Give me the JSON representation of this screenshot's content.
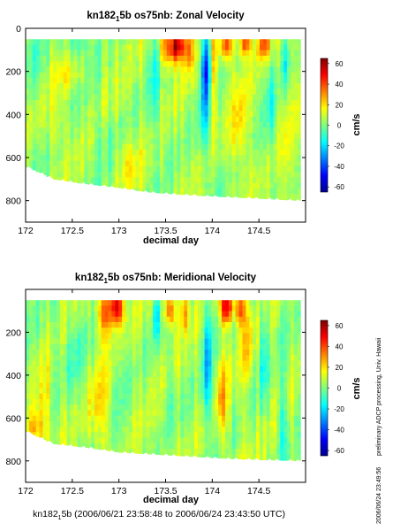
{
  "chart_data": [
    {
      "type": "heatmap",
      "title": "kn182",
      "title_sub": "1",
      "title_rest": "5b os75nb: Zonal Velocity",
      "xlabel": "decimal day",
      "x_ticks": [
        "172",
        "172.5",
        "173",
        "173.5",
        "174",
        "174.5"
      ],
      "x_tick_values": [
        172,
        172.5,
        173,
        173.5,
        174,
        174.5
      ],
      "xlim": [
        172,
        175
      ],
      "ylabel": "",
      "y_ticks": [
        "0",
        "200",
        "400",
        "600",
        "800"
      ],
      "y_tick_values": [
        0,
        200,
        400,
        600,
        800
      ],
      "ylim": [
        0,
        900
      ],
      "y_inverted": true,
      "colorbar": {
        "label": "cm/s",
        "ticks": [
          "60",
          "40",
          "20",
          "0",
          "-20",
          "-40",
          "-60"
        ],
        "tick_values": [
          60,
          40,
          20,
          0,
          -20,
          -40,
          -60
        ],
        "range": [
          -65,
          65
        ]
      },
      "data_top": 50,
      "bottom_depth_start": [
        [
          172.0,
          640
        ],
        [
          172.3,
          700
        ],
        [
          172.6,
          720
        ],
        [
          173.0,
          740
        ],
        [
          173.3,
          760
        ],
        [
          173.6,
          770
        ],
        [
          174.0,
          780
        ],
        [
          174.5,
          790
        ],
        [
          174.95,
          800
        ]
      ],
      "bottom_depth_end": [
        [
          172.0,
          690
        ],
        [
          172.5,
          720
        ],
        [
          173.2,
          760
        ],
        [
          173.9,
          780
        ],
        [
          174.5,
          790
        ],
        [
          174.95,
          800
        ]
      ],
      "features": [
        {
          "day": 173.63,
          "depth": 80,
          "value": 55,
          "width": 0.07,
          "height": 70
        },
        {
          "day": 173.52,
          "depth": 90,
          "value": 35,
          "width": 0.08,
          "height": 90
        },
        {
          "day": 173.75,
          "depth": 100,
          "value": 30,
          "width": 0.05,
          "height": 100
        },
        {
          "day": 173.93,
          "depth": 170,
          "value": -45,
          "width": 0.05,
          "height": 160
        },
        {
          "day": 173.91,
          "depth": 420,
          "value": -20,
          "width": 0.05,
          "height": 220
        },
        {
          "day": 174.35,
          "depth": 70,
          "value": 40,
          "width": 0.06,
          "height": 60
        },
        {
          "day": 174.15,
          "depth": 80,
          "value": 35,
          "width": 0.07,
          "height": 70
        },
        {
          "day": 174.55,
          "depth": 80,
          "value": 35,
          "width": 0.07,
          "height": 60
        },
        {
          "day": 174.78,
          "depth": 140,
          "value": -25,
          "width": 0.04,
          "height": 170
        },
        {
          "day": 174.62,
          "depth": 350,
          "value": -15,
          "width": 0.04,
          "height": 220
        },
        {
          "day": 173.38,
          "depth": 250,
          "value": -15,
          "width": 0.05,
          "height": 300
        },
        {
          "day": 174.02,
          "depth": 200,
          "value": 25,
          "width": 0.04,
          "height": 250
        },
        {
          "day": 172.55,
          "depth": 70,
          "value": -15,
          "width": 0.12,
          "height": 50
        },
        {
          "day": 172.45,
          "depth": 230,
          "value": 10,
          "width": 0.15,
          "height": 60
        },
        {
          "day": 172.35,
          "depth": 450,
          "value": 8,
          "width": 0.12,
          "height": 120
        },
        {
          "day": 172.85,
          "depth": 500,
          "value": -8,
          "width": 0.1,
          "height": 150
        },
        {
          "day": 173.1,
          "depth": 620,
          "value": 12,
          "width": 0.12,
          "height": 100
        },
        {
          "day": 174.3,
          "depth": 450,
          "value": 15,
          "width": 0.08,
          "height": 200
        },
        {
          "day": 172.1,
          "depth": 150,
          "value": -5,
          "width": 0.1,
          "height": 150
        }
      ]
    },
    {
      "type": "heatmap",
      "title": "kn182",
      "title_sub": "1",
      "title_rest": "5b os75nb: Meridional Velocity",
      "xlabel": "decimal day",
      "x_ticks": [
        "172",
        "172.5",
        "173",
        "173.5",
        "174",
        "174.5"
      ],
      "x_tick_values": [
        172,
        172.5,
        173,
        173.5,
        174,
        174.5
      ],
      "xlim": [
        172,
        175
      ],
      "ylabel": "",
      "y_ticks": [
        "200",
        "400",
        "600",
        "800"
      ],
      "y_tick_values": [
        200,
        400,
        600,
        800
      ],
      "ylim": [
        0,
        900
      ],
      "y_inverted": true,
      "colorbar": {
        "label": "cm/s",
        "ticks": [
          "60",
          "40",
          "20",
          "0",
          "-20",
          "-40",
          "-60"
        ],
        "tick_values": [
          60,
          40,
          20,
          0,
          -20,
          -40,
          -60
        ],
        "range": [
          -65,
          65
        ]
      },
      "data_top": 50,
      "bottom_depth_start": [
        [
          172.0,
          660
        ],
        [
          172.3,
          720
        ],
        [
          172.7,
          740
        ],
        [
          173.0,
          760
        ],
        [
          173.4,
          770
        ],
        [
          173.8,
          780
        ],
        [
          174.2,
          790
        ],
        [
          174.95,
          800
        ]
      ],
      "bottom_depth_end": [
        [
          172.0,
          700
        ],
        [
          172.5,
          740
        ],
        [
          173.2,
          770
        ],
        [
          174.0,
          790
        ],
        [
          174.95,
          800
        ]
      ],
      "features": [
        {
          "day": 172.98,
          "depth": 80,
          "value": 55,
          "width": 0.07,
          "height": 90
        },
        {
          "day": 172.85,
          "depth": 110,
          "value": 35,
          "width": 0.08,
          "height": 110
        },
        {
          "day": 174.15,
          "depth": 80,
          "value": 50,
          "width": 0.07,
          "height": 80
        },
        {
          "day": 174.3,
          "depth": 90,
          "value": 35,
          "width": 0.06,
          "height": 80
        },
        {
          "day": 173.55,
          "depth": 100,
          "value": 35,
          "width": 0.05,
          "height": 70
        },
        {
          "day": 173.7,
          "depth": 110,
          "value": 30,
          "width": 0.04,
          "height": 90
        },
        {
          "day": 173.4,
          "depth": 130,
          "value": -30,
          "width": 0.03,
          "height": 110
        },
        {
          "day": 173.95,
          "depth": 350,
          "value": -35,
          "width": 0.04,
          "height": 320
        },
        {
          "day": 174.55,
          "depth": 300,
          "value": -20,
          "width": 0.04,
          "height": 280
        },
        {
          "day": 174.75,
          "depth": 600,
          "value": -15,
          "width": 0.04,
          "height": 200
        },
        {
          "day": 173.55,
          "depth": 450,
          "value": -15,
          "width": 0.05,
          "height": 260
        },
        {
          "day": 172.2,
          "depth": 520,
          "value": 12,
          "width": 0.12,
          "height": 150
        },
        {
          "day": 172.1,
          "depth": 650,
          "value": 25,
          "width": 0.1,
          "height": 80
        },
        {
          "day": 172.5,
          "depth": 300,
          "value": -8,
          "width": 0.15,
          "height": 200
        },
        {
          "day": 172.8,
          "depth": 550,
          "value": 15,
          "width": 0.12,
          "height": 200
        },
        {
          "day": 174.1,
          "depth": 500,
          "value": 20,
          "width": 0.06,
          "height": 200
        },
        {
          "day": 174.38,
          "depth": 250,
          "value": 15,
          "width": 0.05,
          "height": 180
        }
      ]
    }
  ],
  "side_text": "preliminary ADCP processing,  Univ. Hawaii",
  "timestamp": "2006/06/24 23:49:56",
  "footer": {
    "prefix": "kn182",
    "sub": "1",
    "rest": "5b (2006/06/21 23:58:48 to 2006/06/24 23:43:50 UTC)"
  }
}
